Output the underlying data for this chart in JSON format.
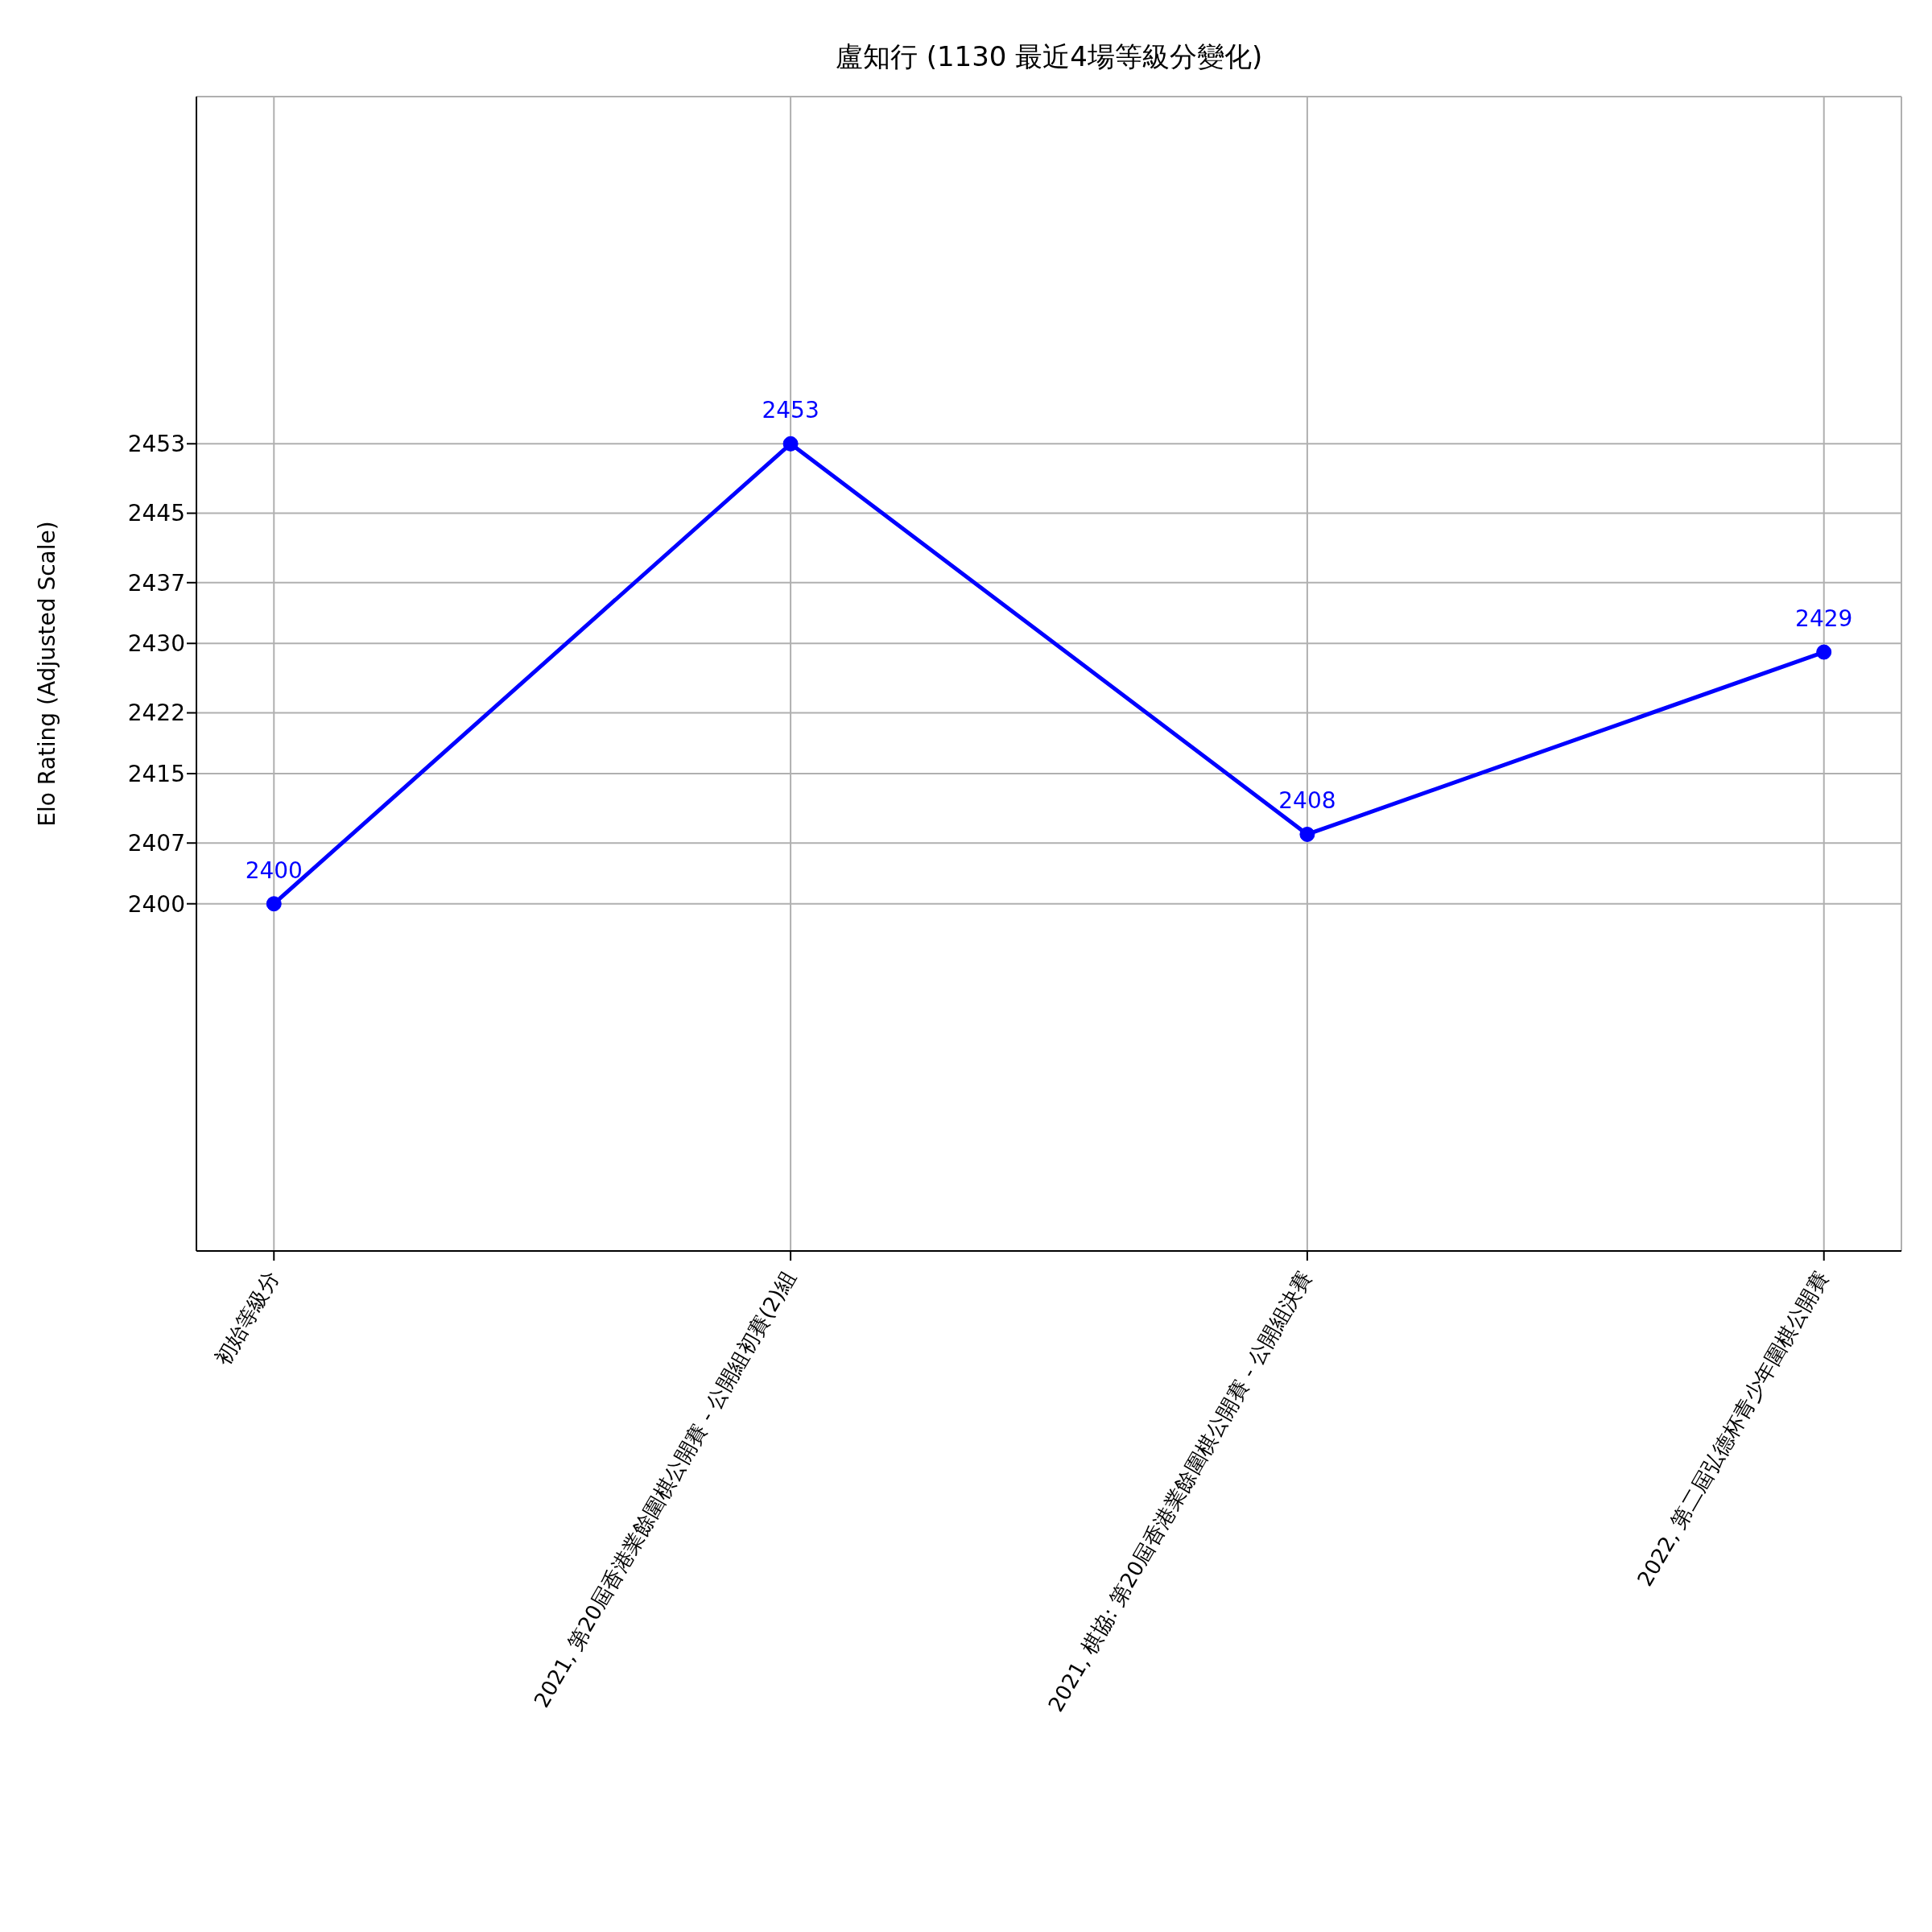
{
  "chart_data": {
    "type": "line",
    "title": "盧知行 (1130 最近4場等級分變化)",
    "ylabel": "Elo Rating (Adjusted Scale)",
    "categories": [
      "初始等級分",
      "2021, 第20屆香港業餘圍棋公開賽 - 公開組初賽(2)組",
      "2021, 棋協: 第20屆香港業餘圍棋公開賽 - 公開組決賽",
      "2022, 第二屆弘德杯青少年圍棋公開賽"
    ],
    "series": [
      {
        "color": "#0000ff",
        "values": [
          2400,
          2453,
          2408,
          2429
        ],
        "value_labels": [
          "2400",
          "2453",
          "2408",
          "2429"
        ]
      }
    ],
    "ylim": [
      2360,
      2493
    ],
    "yticks": [
      2400,
      2407,
      2415,
      2422,
      2430,
      2437,
      2445,
      2453
    ],
    "grid": true,
    "marker": "circle",
    "line_style": "solid"
  }
}
